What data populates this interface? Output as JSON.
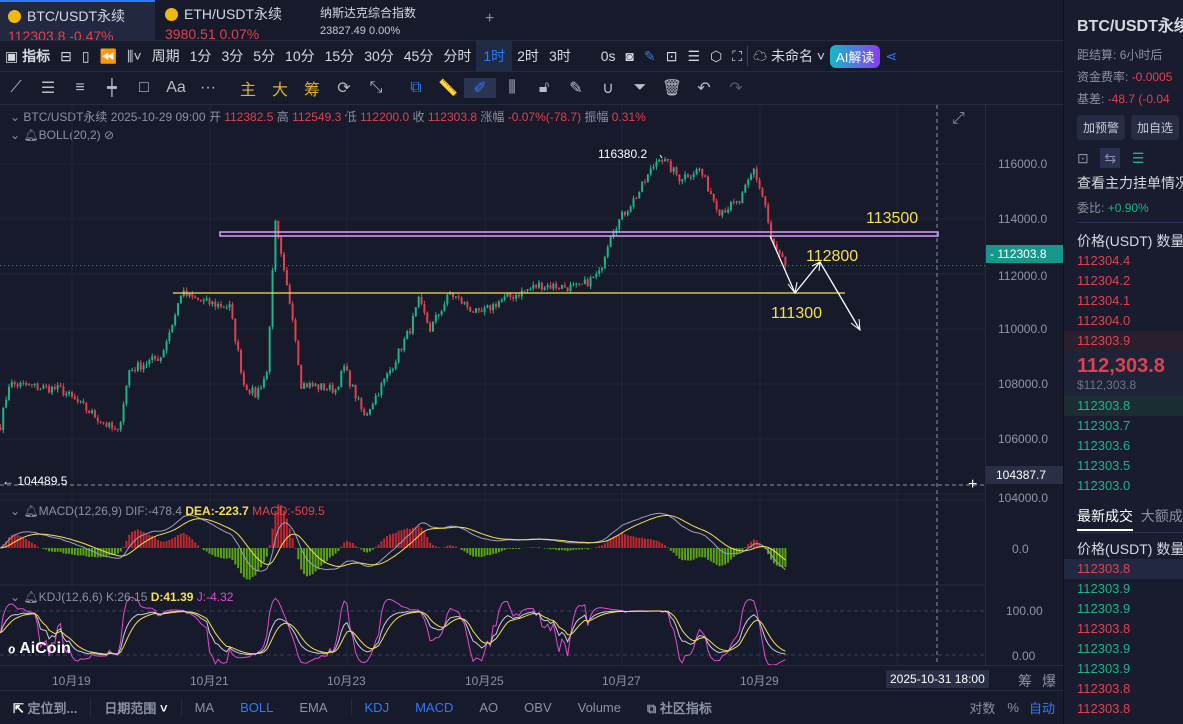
{
  "tabs": [
    {
      "name": "BTC/USDT永续",
      "price": "112303.8",
      "change": "-0.47%"
    },
    {
      "name": "ETH/USDT永续",
      "price": "3980.51",
      "change": "0.07%"
    },
    {
      "name": "纳斯达克综合指数",
      "price": "23827.49",
      "change": "0.00%"
    }
  ],
  "toolbar": {
    "indicators": "指标",
    "period": "周期",
    "intervals": [
      "1分",
      "3分",
      "5分",
      "10分",
      "15分",
      "30分",
      "45分",
      "分时",
      "1时",
      "2时",
      "3时"
    ],
    "selected": "1时",
    "countdown": "0s",
    "layout_name": "未命名",
    "ai": "AI解读"
  },
  "drawtools": {
    "main": "主",
    "big": "大",
    "chips": "筹",
    "text": "Aa"
  },
  "ohlc": {
    "symbol": "BTC/USDT永续",
    "time": "2025-10-29 09:00",
    "open_l": "开",
    "open": "112382.5",
    "high_l": "高",
    "high": "112549.3",
    "low_l": "低",
    "low": "112200.0",
    "close_l": "收",
    "close": "112303.8",
    "chg_l": "涨幅",
    "chg": "-0.07%(-78.7)",
    "amp_l": "振幅",
    "amp": "0.31%",
    "boll": "BOLL(20,2)"
  },
  "annotations": {
    "high": "116380.2",
    "low": "104489.5",
    "l1": "113500",
    "l2": "112800",
    "l3": "111300"
  },
  "price_axis": {
    "ticks": [
      "116000.0",
      "114000.0",
      "112000.0",
      "110000.0",
      "108000.0",
      "106000.0",
      "104000.0"
    ],
    "last": "112303.8",
    "cross": "104387.7"
  },
  "macd": {
    "label": "MACD(12,26,9)",
    "dif": "DIF:-478.4",
    "dea": "DEA:-223.7",
    "macd": "MACD:-509.5",
    "zero": "0.0"
  },
  "kdj": {
    "label": "KDJ(12,6,6)",
    "k": "K:26.15",
    "d": "D:41.39",
    "j": "J:-4.32",
    "t100": "100.00",
    "t0": "0.00"
  },
  "dates": [
    "10月19",
    "10月21",
    "10月23",
    "10月25",
    "10月27",
    "10月29"
  ],
  "cross_time": "2025-10-31 18:00",
  "axis_btns": [
    "筹",
    "爆"
  ],
  "logo": "AiCoin",
  "bottom": {
    "locate": "定位到...",
    "range": "日期范围",
    "inds": [
      "MA",
      "BOLL",
      "EMA",
      "KDJ",
      "MACD",
      "AO",
      "OBV",
      "Volume"
    ],
    "active": [
      "BOLL",
      "KDJ",
      "MACD"
    ],
    "community": "社区指标",
    "log": "对数",
    "pct": "%",
    "auto": "自动"
  },
  "chart_data": {
    "type": "candlestick",
    "interval": "1h",
    "waypoints_hour_price": [
      [
        -25,
        106500
      ],
      [
        -22,
        108000
      ],
      [
        -4,
        107800
      ],
      [
        16,
        106200
      ],
      [
        20,
        108500
      ],
      [
        31,
        109000
      ],
      [
        36,
        110500
      ],
      [
        38,
        111300
      ],
      [
        45,
        111000
      ],
      [
        55,
        110800
      ],
      [
        60,
        108000
      ],
      [
        64,
        107600
      ],
      [
        68,
        108400
      ],
      [
        71,
        113800
      ],
      [
        74,
        112000
      ],
      [
        77,
        110500
      ],
      [
        80,
        108000
      ],
      [
        92,
        107800
      ],
      [
        95,
        108600
      ],
      [
        102,
        106800
      ],
      [
        111,
        108500
      ],
      [
        118,
        110000
      ],
      [
        121,
        111000
      ],
      [
        125,
        110000
      ],
      [
        132,
        111300
      ],
      [
        142,
        110500
      ],
      [
        149,
        111000
      ],
      [
        163,
        111600
      ],
      [
        177,
        111500
      ],
      [
        184,
        112000
      ],
      [
        188,
        113500
      ],
      [
        198,
        115000
      ],
      [
        205,
        116300
      ],
      [
        212,
        115500
      ],
      [
        219,
        115800
      ],
      [
        226,
        114300
      ],
      [
        233,
        114600
      ],
      [
        238,
        115800
      ],
      [
        242,
        114500
      ],
      [
        244,
        113200
      ],
      [
        249,
        112300
      ]
    ]
  },
  "panel": {
    "title": "BTC/USDT永续",
    "settle_l": "距结算:",
    "settle": "6小时后",
    "fund_l": "资金费率:",
    "fund": "-0.0005",
    "basis_l": "基差:",
    "basis": "-48.7 (-0.04",
    "alert": "加预警",
    "fav": "加自选",
    "depth_title": "查看主力挂单情况",
    "ratio_l": "委比:",
    "ratio": "+0.90%",
    "col_price": "价格(USDT)",
    "col_qty": "数量",
    "asks": [
      "112304.4",
      "112304.2",
      "112304.1",
      "112304.0",
      "112303.9"
    ],
    "last": "112,303.8",
    "last_usd": "$112,303.8",
    "bids": [
      "112303.8",
      "112303.7",
      "112303.6",
      "112303.5",
      "112303.0"
    ],
    "trades_tab": "最新成交",
    "big_tab": "大额成交",
    "trades": [
      [
        "112303.8",
        "r"
      ],
      [
        "112303.9",
        "g"
      ],
      [
        "112303.9",
        "g"
      ],
      [
        "112303.8",
        "r"
      ],
      [
        "112303.9",
        "g"
      ],
      [
        "112303.9",
        "g"
      ],
      [
        "112303.8",
        "r"
      ],
      [
        "112303.8",
        "r"
      ]
    ]
  },
  "colors": {
    "up": "#1fb387",
    "down": "#e0414e",
    "accent": "#2f7bf5"
  }
}
